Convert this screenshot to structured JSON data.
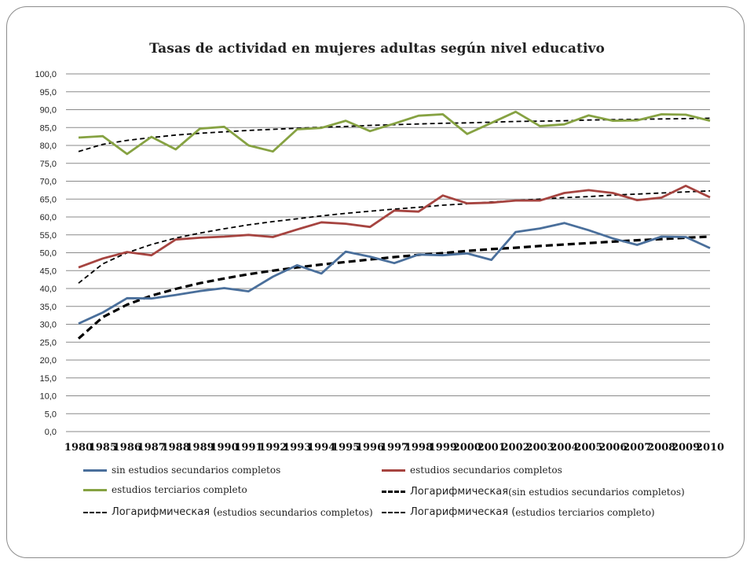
{
  "chart_data": {
    "type": "line",
    "title": "Tasas de actividad en mujeres adultas según nivel educativo",
    "xlabel": "",
    "ylabel": "",
    "ylim": [
      0,
      100
    ],
    "yticks": [
      "0,0",
      "5,0",
      "10,0",
      "15,0",
      "20,0",
      "25,0",
      "30,0",
      "35,0",
      "40,0",
      "45,0",
      "50,0",
      "55,0",
      "60,0",
      "65,0",
      "70,0",
      "75,0",
      "80,0",
      "85,0",
      "90,0",
      "95,0",
      "100,0"
    ],
    "categories": [
      "1980",
      "1985",
      "1986",
      "1987",
      "1988",
      "1989",
      "1990",
      "1991",
      "1992",
      "1993",
      "1994",
      "1995",
      "1996",
      "1997",
      "1998",
      "1999",
      "2000",
      "2001",
      "2002",
      "2003",
      "2004",
      "2005",
      "2006",
      "2007",
      "2008",
      "2009",
      "2010"
    ],
    "grid": true,
    "legend_position": "bottom",
    "series": [
      {
        "name": "sin estudios secundarios completos",
        "color": "#4a6f9b",
        "style": "solid",
        "values": [
          30.2,
          33.3,
          37.3,
          37.2,
          38.2,
          39.3,
          40.1,
          39.2,
          43.3,
          46.5,
          44.2,
          50.3,
          48.9,
          47.1,
          49.5,
          49.3,
          49.8,
          48.0,
          55.8,
          56.8,
          58.3,
          56.3,
          54.0,
          52.2,
          54.5,
          54.4,
          51.3
        ]
      },
      {
        "name": "estudios secundarios completos",
        "color": "#a64440",
        "style": "solid",
        "values": [
          45.9,
          48.4,
          50.2,
          49.3,
          53.7,
          54.2,
          54.5,
          55.0,
          54.4,
          56.5,
          58.5,
          58.1,
          57.2,
          61.8,
          61.5,
          66.0,
          63.8,
          64.0,
          64.6,
          64.6,
          66.7,
          67.5,
          66.7,
          64.7,
          65.4,
          68.7,
          65.5
        ]
      },
      {
        "name": "estudios terciarios completo",
        "color": "#86a242",
        "style": "solid",
        "values": [
          82.2,
          82.6,
          77.6,
          82.4,
          78.9,
          84.7,
          85.2,
          80.0,
          78.3,
          84.5,
          84.9,
          86.9,
          84.0,
          86.1,
          88.3,
          88.7,
          83.2,
          86.3,
          89.4,
          85.4,
          85.9,
          88.4,
          86.9,
          87.0,
          88.7,
          88.6,
          86.9
        ]
      },
      {
        "name": "Логарифмическая (sin estudios secundarios completos)",
        "color": "#000000",
        "style": "dashed-thick",
        "values": [
          26.0,
          32.0,
          35.5,
          38.0,
          39.9,
          41.5,
          42.8,
          44.0,
          45.0,
          45.9,
          46.7,
          47.4,
          48.1,
          48.8,
          49.4,
          49.9,
          50.5,
          51.0,
          51.4,
          51.9,
          52.3,
          52.7,
          53.1,
          53.5,
          53.8,
          54.2,
          54.5
        ]
      },
      {
        "name": "Логарифмическая (estudios secundarios completos)",
        "color": "#000000",
        "style": "dashed",
        "values": [
          41.5,
          46.9,
          50.0,
          52.3,
          54.1,
          55.5,
          56.7,
          57.8,
          58.7,
          59.5,
          60.3,
          61.0,
          61.6,
          62.2,
          62.7,
          63.3,
          63.7,
          64.2,
          64.6,
          65.0,
          65.4,
          65.7,
          66.1,
          66.4,
          66.7,
          67.0,
          67.3
        ]
      },
      {
        "name": "Логарифмическая (estudios terciarios completo)",
        "color": "#000000",
        "style": "dashed",
        "values": [
          78.3,
          80.3,
          81.4,
          82.2,
          82.9,
          83.4,
          83.8,
          84.2,
          84.5,
          84.8,
          85.1,
          85.3,
          85.6,
          85.8,
          86.0,
          86.2,
          86.3,
          86.5,
          86.7,
          86.8,
          86.9,
          87.1,
          87.2,
          87.3,
          87.4,
          87.5,
          87.6
        ]
      }
    ],
    "legend": [
      {
        "series": 0,
        "plain": "sin estudios secundarios completos",
        "big": ""
      },
      {
        "series": 1,
        "plain": "estudios secundarios completos",
        "big": ""
      },
      {
        "series": 2,
        "plain": "estudios terciarios completo",
        "big": ""
      },
      {
        "series": 3,
        "big": "Логарифмическая",
        "plain": " (sin estudios secundarios completos)"
      },
      {
        "series": 4,
        "big": "Логарифмическая (",
        "plain": "estudios secundarios completos)"
      },
      {
        "series": 5,
        "big": "Логарифмическая (",
        "plain": "estudios terciarios completo)"
      }
    ]
  }
}
